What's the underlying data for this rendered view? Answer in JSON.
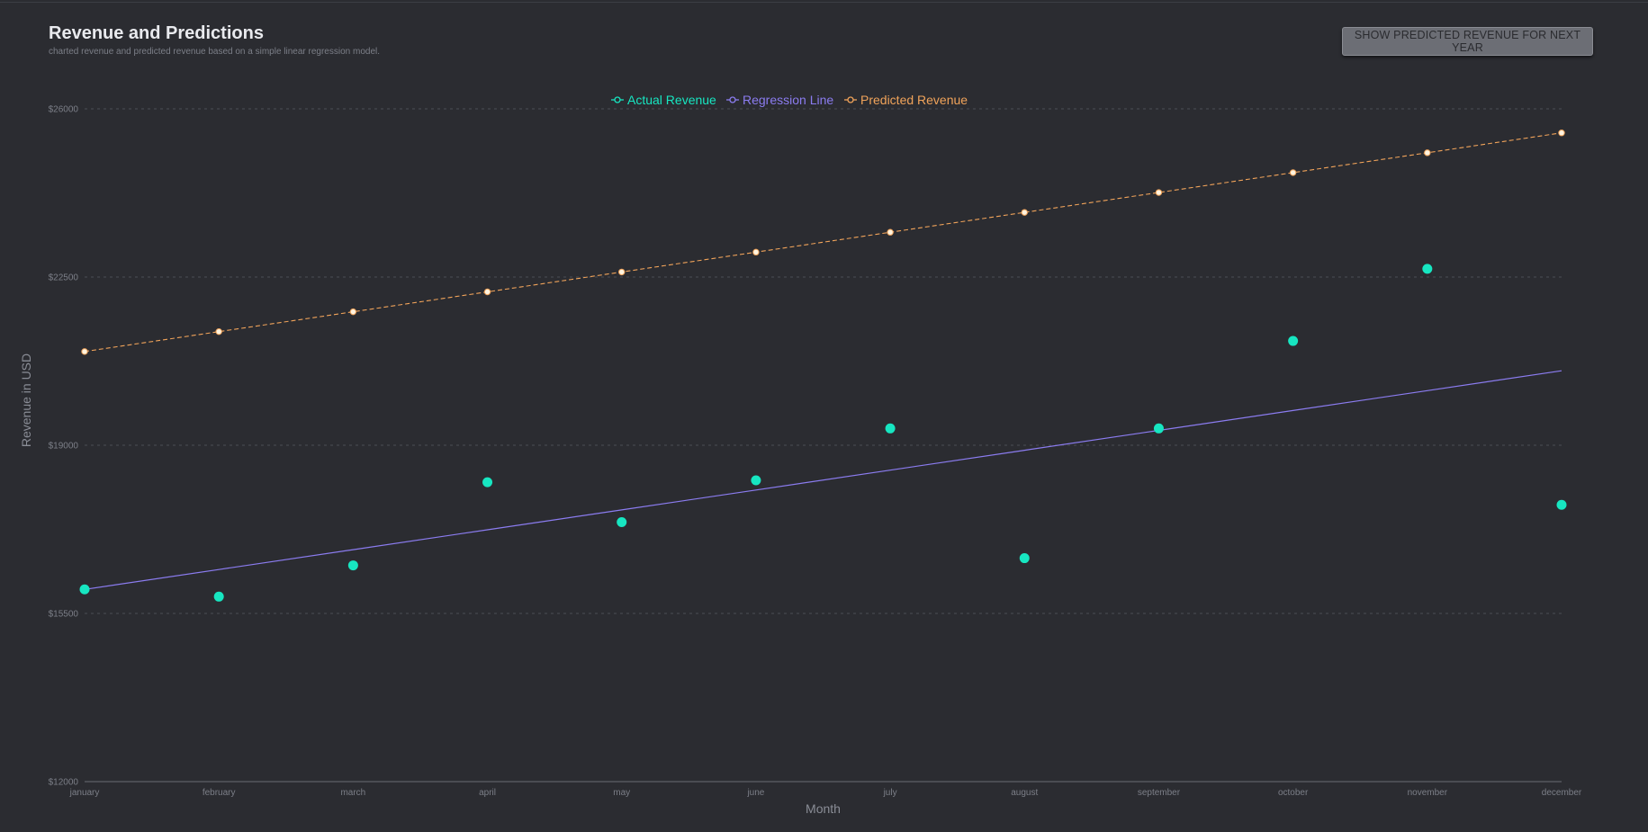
{
  "header": {
    "title": "Revenue and Predictions",
    "subtitle": "charted revenue and predicted revenue based on a simple linear regression model."
  },
  "toolbar": {
    "predict_button_label": "SHOW PREDICTED REVENUE FOR NEXT YEAR"
  },
  "colors": {
    "background": "#2b2c31",
    "actual": "#17e6c1",
    "regression": "#8b7cf0",
    "predicted": "#f0a35a",
    "predicted_marker": "#fff4e0",
    "grid": "#4b4e55"
  },
  "chart_data": {
    "type": "line",
    "title": "",
    "xlabel": "Month",
    "ylabel": "Revenue in USD",
    "categories": [
      "january",
      "february",
      "march",
      "april",
      "may",
      "june",
      "july",
      "august",
      "september",
      "october",
      "november",
      "december"
    ],
    "ylim": [
      12000,
      26000
    ],
    "yticks": [
      12000,
      15500,
      19000,
      22500,
      26000
    ],
    "ytick_labels": [
      "$12000",
      "$15500",
      "$19000",
      "$22500",
      "$26000"
    ],
    "grid": true,
    "legend_position": "top-center",
    "series": [
      {
        "name": "Actual Revenue",
        "style": "scatter",
        "values": [
          16000,
          15850,
          16500,
          18230,
          17400,
          18270,
          19350,
          16650,
          19350,
          21170,
          22670,
          17760
        ]
      },
      {
        "name": "Regression Line",
        "style": "line",
        "values": [
          16000,
          16414,
          16827,
          17241,
          17655,
          18068,
          18482,
          18895,
          19309,
          19723,
          20136,
          20550
        ]
      },
      {
        "name": "Predicted Revenue",
        "style": "dashed-line",
        "values": [
          20950,
          21364,
          21777,
          22191,
          22605,
          23018,
          23432,
          23845,
          24259,
          24673,
          25086,
          25500
        ]
      }
    ]
  }
}
